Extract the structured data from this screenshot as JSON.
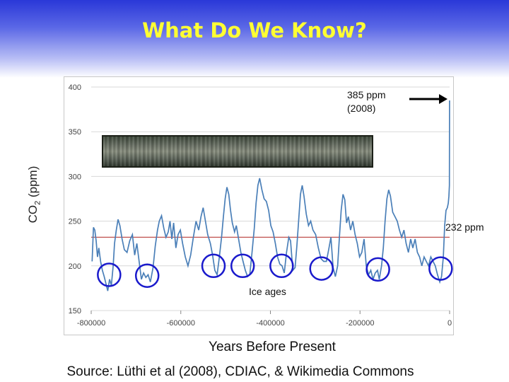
{
  "slide": {
    "title": "What Do We Know?",
    "x_axis_title": "Years Before Present",
    "y_axis_title_main": "CO",
    "y_axis_title_sub": "2",
    "y_axis_title_unit": " (ppm)",
    "source": "Source: Lüthi et al (2008), CDIAC, & Wikimedia Commons",
    "annotation_current_line1": "385 ppm",
    "annotation_current_line2": "(2008)",
    "annotation_reference": "232 ppm",
    "annotation_ice_ages": "Ice ages",
    "image_label": "ice core photograph"
  },
  "colors": {
    "title": "#ffff33",
    "series_line": "#4a7fb8",
    "reference_line": "#c0504d",
    "circles": "#1a1acc",
    "header_gradient_top": "#2a38d8"
  },
  "chart_data": {
    "type": "line",
    "title": "",
    "xlabel": "Years Before Present",
    "ylabel": "CO2 (ppm)",
    "xlim": [
      -800000,
      0
    ],
    "ylim": [
      150,
      400
    ],
    "x_ticks": [
      -800000,
      -600000,
      -400000,
      -200000,
      0
    ],
    "x_tick_labels": [
      "-800000",
      "-600000",
      "-400000",
      "-200000",
      "0"
    ],
    "y_ticks": [
      150,
      200,
      250,
      300,
      350,
      400
    ],
    "y_tick_labels": [
      "150",
      "200",
      "250",
      "300",
      "350",
      "400"
    ],
    "grid": "horizontal",
    "reference_line": {
      "y": 232,
      "label": "232 ppm"
    },
    "series": [
      {
        "values": [
          [
            -798000,
            205
          ],
          [
            -795000,
            243
          ],
          [
            -792000,
            240
          ],
          [
            -789000,
            228
          ],
          [
            -786000,
            210
          ],
          [
            -783000,
            220
          ],
          [
            -779000,
            205
          ],
          [
            -775000,
            195
          ],
          [
            -771000,
            188
          ],
          [
            -767000,
            180
          ],
          [
            -763000,
            172
          ],
          [
            -759000,
            185
          ],
          [
            -755000,
            178
          ],
          [
            -751000,
            200
          ],
          [
            -748000,
            225
          ],
          [
            -744000,
            240
          ],
          [
            -740000,
            252
          ],
          [
            -736000,
            245
          ],
          [
            -731000,
            230
          ],
          [
            -726000,
            218
          ],
          [
            -720000,
            215
          ],
          [
            -714000,
            228
          ],
          [
            -708000,
            235
          ],
          [
            -703000,
            212
          ],
          [
            -698000,
            225
          ],
          [
            -693000,
            205
          ],
          [
            -688000,
            185
          ],
          [
            -683000,
            192
          ],
          [
            -678000,
            187
          ],
          [
            -673000,
            190
          ],
          [
            -668000,
            182
          ],
          [
            -662000,
            198
          ],
          [
            -657000,
            222
          ],
          [
            -652000,
            240
          ],
          [
            -648000,
            250
          ],
          [
            -643000,
            256
          ],
          [
            -638000,
            242
          ],
          [
            -633000,
            232
          ],
          [
            -628000,
            238
          ],
          [
            -624000,
            250
          ],
          [
            -620000,
            230
          ],
          [
            -616000,
            248
          ],
          [
            -611000,
            220
          ],
          [
            -606000,
            235
          ],
          [
            -601000,
            240
          ],
          [
            -596000,
            225
          ],
          [
            -590000,
            210
          ],
          [
            -584000,
            200
          ],
          [
            -578000,
            212
          ],
          [
            -572000,
            232
          ],
          [
            -566000,
            250
          ],
          [
            -560000,
            240
          ],
          [
            -555000,
            255
          ],
          [
            -550000,
            265
          ],
          [
            -545000,
            250
          ],
          [
            -540000,
            235
          ],
          [
            -534000,
            225
          ],
          [
            -529000,
            212
          ],
          [
            -524000,
            195
          ],
          [
            -519000,
            190
          ],
          [
            -514000,
            210
          ],
          [
            -509000,
            232
          ],
          [
            -505000,
            255
          ],
          [
            -501000,
            275
          ],
          [
            -497000,
            288
          ],
          [
            -493000,
            280
          ],
          [
            -489000,
            262
          ],
          [
            -485000,
            248
          ],
          [
            -480000,
            238
          ],
          [
            -476000,
            245
          ],
          [
            -471000,
            230
          ],
          [
            -466000,
            215
          ],
          [
            -461000,
            205
          ],
          [
            -456000,
            195
          ],
          [
            -451000,
            188
          ],
          [
            -446000,
            190
          ],
          [
            -441000,
            215
          ],
          [
            -436000,
            242
          ],
          [
            -432000,
            270
          ],
          [
            -428000,
            290
          ],
          [
            -424000,
            298
          ],
          [
            -419000,
            285
          ],
          [
            -414000,
            275
          ],
          [
            -409000,
            272
          ],
          [
            -404000,
            262
          ],
          [
            -399000,
            245
          ],
          [
            -394000,
            238
          ],
          [
            -389000,
            225
          ],
          [
            -384000,
            210
          ],
          [
            -379000,
            202
          ],
          [
            -374000,
            200
          ],
          [
            -369000,
            192
          ],
          [
            -364000,
            215
          ],
          [
            -359000,
            232
          ],
          [
            -355000,
            228
          ],
          [
            -350000,
            195
          ],
          [
            -345000,
            198
          ],
          [
            -341000,
            222
          ],
          [
            -337000,
            250
          ],
          [
            -333000,
            280
          ],
          [
            -329000,
            290
          ],
          [
            -325000,
            278
          ],
          [
            -320000,
            258
          ],
          [
            -315000,
            245
          ],
          [
            -310000,
            250
          ],
          [
            -305000,
            240
          ],
          [
            -299000,
            235
          ],
          [
            -293000,
            220
          ],
          [
            -287000,
            208
          ],
          [
            -281000,
            205
          ],
          [
            -275000,
            205
          ],
          [
            -270000,
            218
          ],
          [
            -265000,
            232
          ],
          [
            -260000,
            198
          ],
          [
            -255000,
            188
          ],
          [
            -250000,
            200
          ],
          [
            -246000,
            232
          ],
          [
            -242000,
            262
          ],
          [
            -238000,
            280
          ],
          [
            -234000,
            274
          ],
          [
            -230000,
            248
          ],
          [
            -226000,
            255
          ],
          [
            -221000,
            240
          ],
          [
            -216000,
            250
          ],
          [
            -211000,
            235
          ],
          [
            -206000,
            225
          ],
          [
            -201000,
            210
          ],
          [
            -196000,
            215
          ],
          [
            -191000,
            230
          ],
          [
            -186000,
            200
          ],
          [
            -181000,
            190
          ],
          [
            -176000,
            195
          ],
          [
            -171000,
            185
          ],
          [
            -166000,
            192
          ],
          [
            -161000,
            195
          ],
          [
            -157000,
            185
          ],
          [
            -152000,
            200
          ],
          [
            -148000,
            220
          ],
          [
            -144000,
            250
          ],
          [
            -140000,
            275
          ],
          [
            -136000,
            285
          ],
          [
            -132000,
            278
          ],
          [
            -127000,
            260
          ],
          [
            -122000,
            255
          ],
          [
            -117000,
            250
          ],
          [
            -112000,
            240
          ],
          [
            -107000,
            232
          ],
          [
            -102000,
            240
          ],
          [
            -97000,
            225
          ],
          [
            -92000,
            215
          ],
          [
            -87000,
            230
          ],
          [
            -82000,
            220
          ],
          [
            -77000,
            230
          ],
          [
            -72000,
            215
          ],
          [
            -67000,
            210
          ],
          [
            -62000,
            200
          ],
          [
            -57000,
            210
          ],
          [
            -52000,
            205
          ],
          [
            -47000,
            200
          ],
          [
            -42000,
            210
          ],
          [
            -37000,
            205
          ],
          [
            -32000,
            200
          ],
          [
            -27000,
            190
          ],
          [
            -22000,
            182
          ],
          [
            -18000,
            188
          ],
          [
            -14000,
            210
          ],
          [
            -11000,
            245
          ],
          [
            -8000,
            262
          ],
          [
            -5000,
            265
          ],
          [
            -3000,
            270
          ],
          [
            -1500,
            278
          ],
          [
            -500,
            290
          ],
          [
            -150,
            385
          ]
        ]
      }
    ],
    "highlight_regions": [
      {
        "x": -760000,
        "y": 190,
        "label": "Ice ages"
      },
      {
        "x": -675000,
        "y": 189
      },
      {
        "x": -527000,
        "y": 200
      },
      {
        "x": -462000,
        "y": 200
      },
      {
        "x": -375000,
        "y": 200
      },
      {
        "x": -286000,
        "y": 197
      },
      {
        "x": -160000,
        "y": 196
      },
      {
        "x": -20000,
        "y": 197
      }
    ]
  }
}
